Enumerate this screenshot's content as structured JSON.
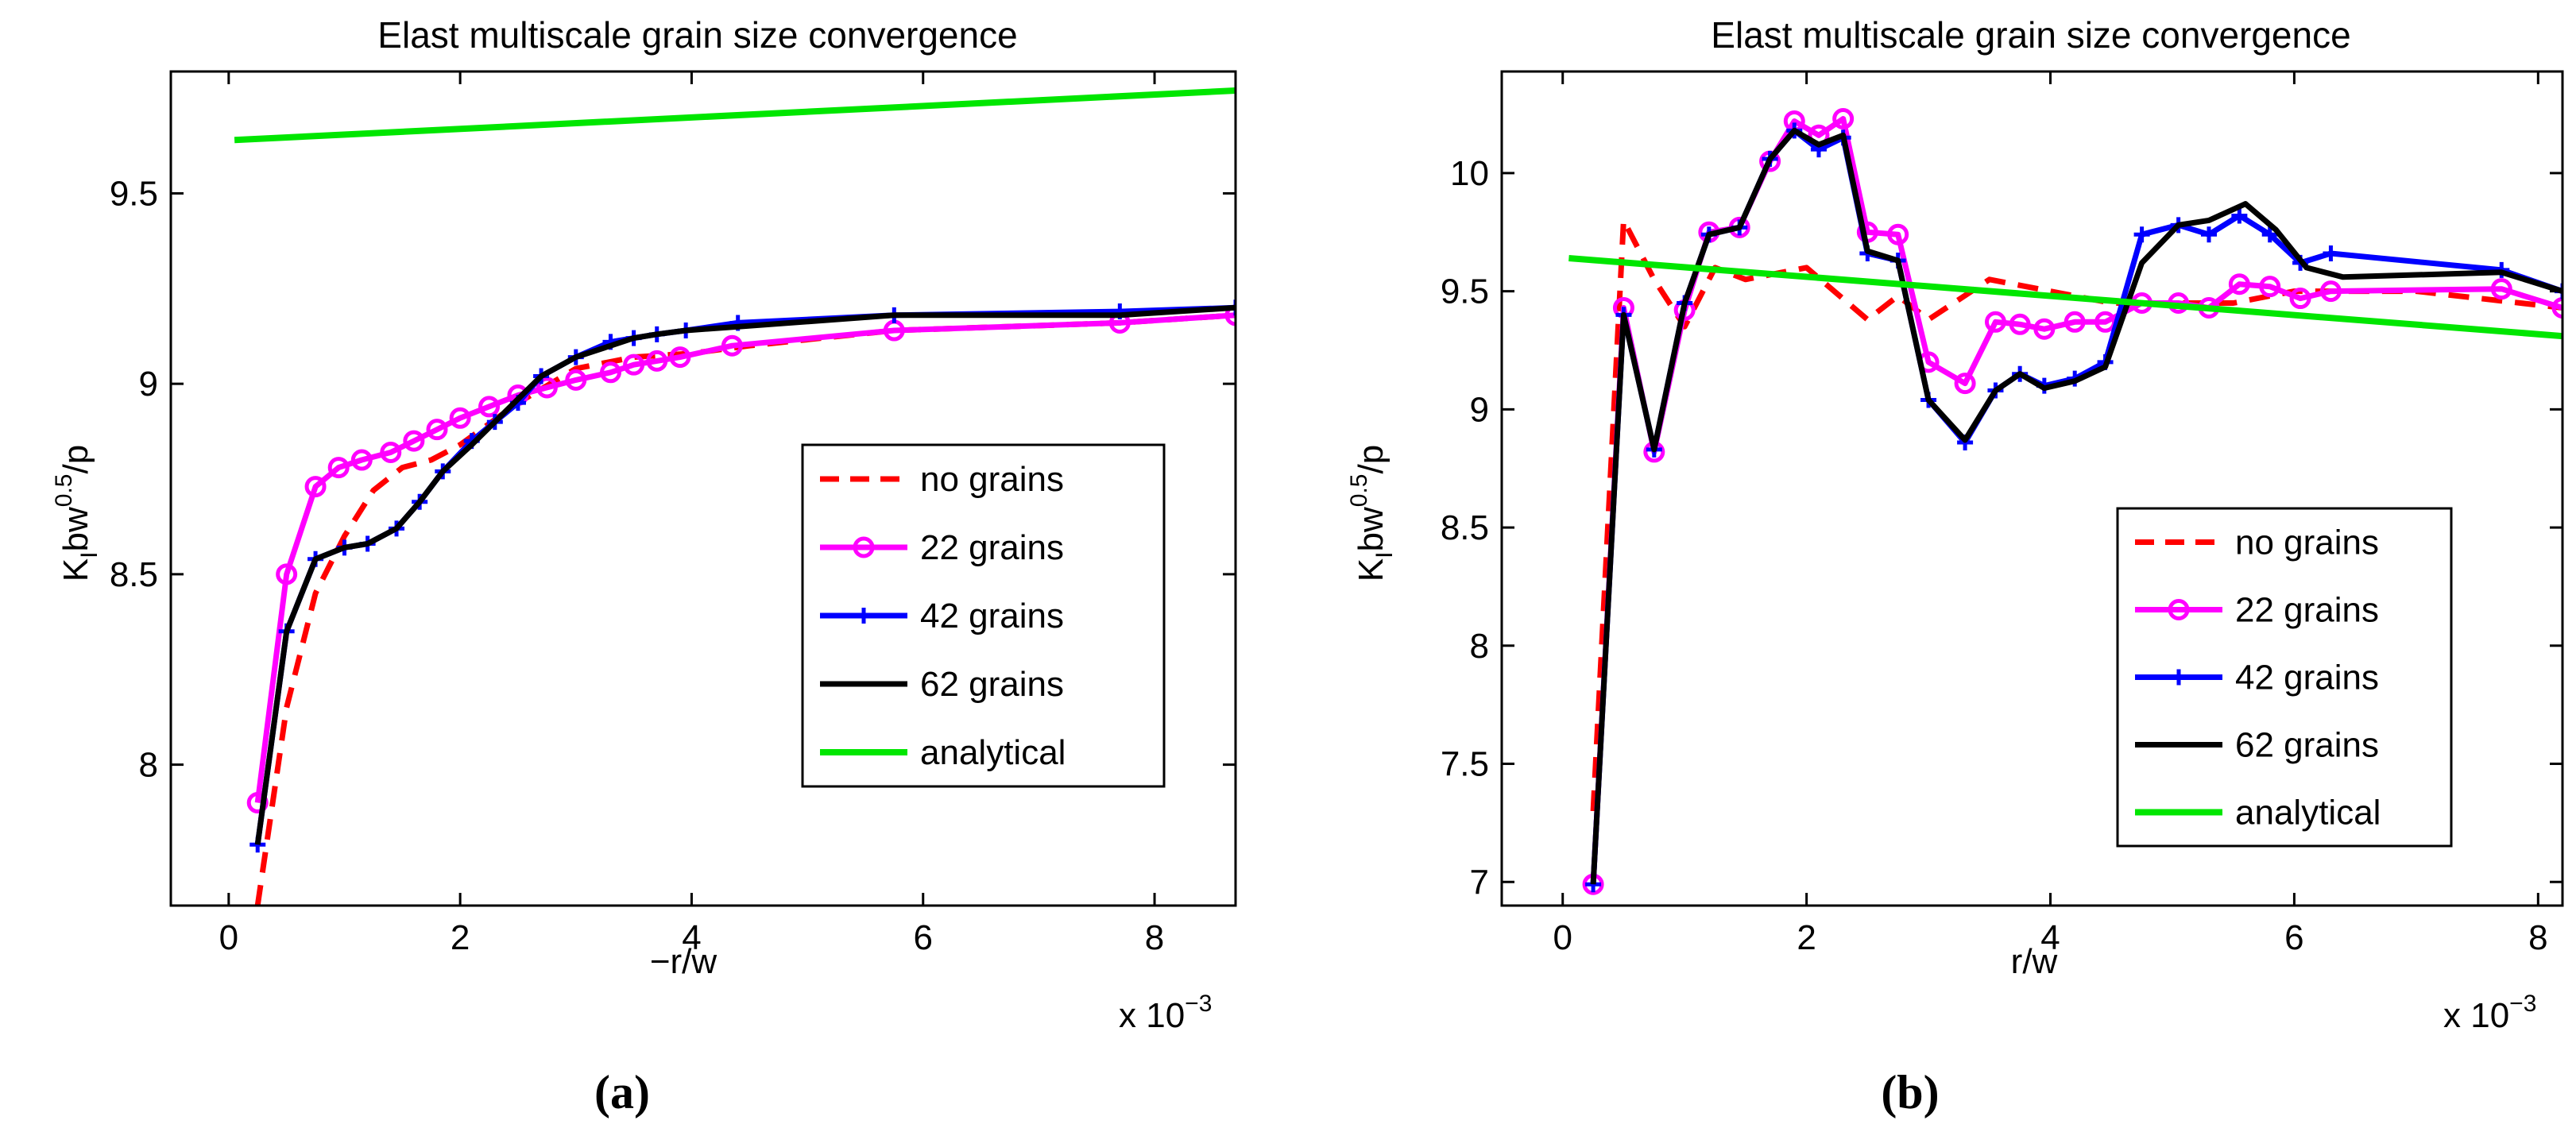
{
  "chart_data": [
    {
      "type": "line",
      "title": "Elast multiscale grain size convergence",
      "xlabel": "−r/w",
      "ylabel": "K_I bw^0.5/p",
      "x_multiplier_label": "x 10",
      "x_multiplier_exp": "−3",
      "caption": "(a)",
      "xlim": [
        -0.5,
        8.7
      ],
      "ylim": [
        7.63,
        9.82
      ],
      "xticks": [
        0,
        2,
        4,
        6,
        8
      ],
      "yticks": [
        8,
        8.5,
        9,
        9.5
      ],
      "ytick_labels": [
        "8",
        "8.5",
        "9",
        "9.5"
      ],
      "legend_position": "lower-right",
      "series": [
        {
          "name": "no grains",
          "color": "#ff0000",
          "dash": "dashed",
          "marker": "none",
          "x": [
            0.25,
            0.5,
            0.75,
            1.0,
            1.25,
            1.5,
            1.75,
            2.0,
            2.5,
            3.0,
            3.5,
            4.0,
            4.5,
            5.75,
            7.7,
            8.7
          ],
          "y": [
            7.63,
            8.15,
            8.45,
            8.6,
            8.72,
            8.78,
            8.8,
            8.84,
            8.95,
            9.04,
            9.07,
            9.08,
            9.1,
            9.14,
            9.16,
            9.18
          ]
        },
        {
          "name": "22 grains",
          "color": "#ff00ff",
          "dash": "solid",
          "marker": "circle",
          "x": [
            0.25,
            0.5,
            0.75,
            0.95,
            1.15,
            1.4,
            1.6,
            1.8,
            2.0,
            2.25,
            2.5,
            2.75,
            3.0,
            3.3,
            3.5,
            3.7,
            3.9,
            4.35,
            5.75,
            7.7,
            8.7
          ],
          "y": [
            7.9,
            8.5,
            8.73,
            8.78,
            8.8,
            8.82,
            8.85,
            8.88,
            8.91,
            8.94,
            8.97,
            8.99,
            9.01,
            9.03,
            9.05,
            9.06,
            9.07,
            9.1,
            9.14,
            9.16,
            9.18
          ]
        },
        {
          "name": "42 grains",
          "color": "#0000ff",
          "dash": "solid",
          "marker": "plus",
          "x": [
            0.25,
            0.5,
            0.75,
            1.0,
            1.2,
            1.45,
            1.65,
            1.85,
            2.1,
            2.3,
            2.5,
            2.7,
            3.0,
            3.3,
            3.5,
            3.7,
            3.95,
            4.4,
            5.75,
            7.7,
            8.7
          ],
          "y": [
            7.79,
            8.35,
            8.54,
            8.57,
            8.58,
            8.62,
            8.69,
            8.77,
            8.85,
            8.9,
            8.95,
            9.02,
            9.07,
            9.11,
            9.12,
            9.13,
            9.14,
            9.16,
            9.18,
            9.19,
            9.2
          ]
        },
        {
          "name": "62 grains",
          "color": "#000000",
          "dash": "solid",
          "marker": "none",
          "x": [
            0.25,
            0.5,
            0.75,
            1.0,
            1.2,
            1.45,
            1.65,
            1.85,
            2.1,
            2.3,
            2.5,
            2.7,
            3.0,
            3.3,
            3.5,
            3.7,
            3.95,
            4.4,
            5.75,
            7.7,
            8.7
          ],
          "y": [
            7.79,
            8.35,
            8.54,
            8.57,
            8.58,
            8.62,
            8.69,
            8.77,
            8.84,
            8.9,
            8.96,
            9.02,
            9.07,
            9.1,
            9.12,
            9.13,
            9.14,
            9.15,
            9.18,
            9.18,
            9.2
          ]
        },
        {
          "name": "analytical",
          "color": "#00e600",
          "dash": "solid",
          "marker": "none",
          "x": [
            0.05,
            8.7
          ],
          "y": [
            9.64,
            9.77
          ]
        }
      ]
    },
    {
      "type": "line",
      "title": "Elast multiscale grain size convergence",
      "xlabel": "r/w",
      "ylabel": "K_I bw^0.5/p",
      "x_multiplier_label": "x 10",
      "x_multiplier_exp": "−3",
      "caption": "(b)",
      "xlim": [
        -0.5,
        8.2
      ],
      "ylim": [
        6.9,
        10.43
      ],
      "xticks": [
        0,
        2,
        4,
        6,
        8
      ],
      "yticks": [
        7,
        7.5,
        8,
        8.5,
        9,
        9.5,
        10
      ],
      "ytick_labels": [
        "7",
        "7.5",
        "8",
        "8.5",
        "9",
        "9.5",
        "10"
      ],
      "legend_position": "lower-right",
      "series": [
        {
          "name": "no grains",
          "color": "#ff0000",
          "dash": "dashed",
          "marker": "none",
          "x": [
            0.25,
            0.5,
            0.75,
            1.0,
            1.25,
            1.5,
            2.0,
            2.5,
            2.75,
            3.0,
            3.5,
            4.0,
            4.5,
            5.0,
            5.5,
            6.0,
            7.0,
            8.2
          ],
          "y": [
            7.3,
            9.8,
            9.55,
            9.35,
            9.6,
            9.55,
            9.6,
            9.38,
            9.48,
            9.38,
            9.55,
            9.5,
            9.45,
            9.45,
            9.45,
            9.5,
            9.5,
            9.43
          ]
        },
        {
          "name": "22 grains",
          "color": "#ff00ff",
          "dash": "solid",
          "marker": "circle",
          "x": [
            0.25,
            0.5,
            0.75,
            1.0,
            1.2,
            1.45,
            1.7,
            1.9,
            2.1,
            2.3,
            2.5,
            2.75,
            3.0,
            3.3,
            3.55,
            3.75,
            3.95,
            4.2,
            4.45,
            4.75,
            5.05,
            5.3,
            5.55,
            5.8,
            6.05,
            6.3,
            7.7,
            8.2
          ],
          "y": [
            6.99,
            9.43,
            8.82,
            9.42,
            9.75,
            9.77,
            10.05,
            10.22,
            10.16,
            10.23,
            9.75,
            9.74,
            9.2,
            9.11,
            9.37,
            9.36,
            9.34,
            9.37,
            9.37,
            9.45,
            9.45,
            9.43,
            9.53,
            9.52,
            9.47,
            9.5,
            9.51,
            9.43
          ]
        },
        {
          "name": "42 grains",
          "color": "#0000ff",
          "dash": "solid",
          "marker": "plus",
          "x": [
            0.25,
            0.5,
            0.75,
            1.0,
            1.2,
            1.45,
            1.7,
            1.9,
            2.1,
            2.3,
            2.5,
            2.75,
            3.0,
            3.3,
            3.55,
            3.75,
            3.95,
            4.2,
            4.45,
            4.75,
            5.05,
            5.3,
            5.55,
            5.8,
            6.05,
            6.3,
            7.7,
            8.2
          ],
          "y": [
            6.99,
            9.4,
            8.83,
            9.45,
            9.74,
            9.77,
            10.06,
            10.18,
            10.1,
            10.15,
            9.66,
            9.63,
            9.04,
            8.86,
            9.08,
            9.15,
            9.1,
            9.13,
            9.2,
            9.74,
            9.78,
            9.74,
            9.82,
            9.74,
            9.62,
            9.66,
            9.59,
            9.5
          ]
        },
        {
          "name": "62 grains",
          "color": "#000000",
          "dash": "solid",
          "marker": "none",
          "x": [
            0.25,
            0.5,
            0.75,
            1.0,
            1.2,
            1.45,
            1.7,
            1.9,
            2.1,
            2.3,
            2.5,
            2.75,
            3.0,
            3.3,
            3.55,
            3.75,
            3.95,
            4.2,
            4.45,
            4.75,
            5.05,
            5.3,
            5.6,
            5.85,
            6.1,
            6.4,
            7.7,
            8.2
          ],
          "y": [
            6.99,
            9.4,
            8.83,
            9.45,
            9.74,
            9.77,
            10.06,
            10.18,
            10.12,
            10.16,
            9.67,
            9.63,
            9.04,
            8.87,
            9.08,
            9.15,
            9.09,
            9.12,
            9.18,
            9.62,
            9.78,
            9.8,
            9.87,
            9.76,
            9.6,
            9.56,
            9.58,
            9.5
          ]
        },
        {
          "name": "analytical",
          "color": "#00e600",
          "dash": "solid",
          "marker": "none",
          "x": [
            0.05,
            8.2
          ],
          "y": [
            9.64,
            9.31
          ]
        }
      ]
    }
  ]
}
